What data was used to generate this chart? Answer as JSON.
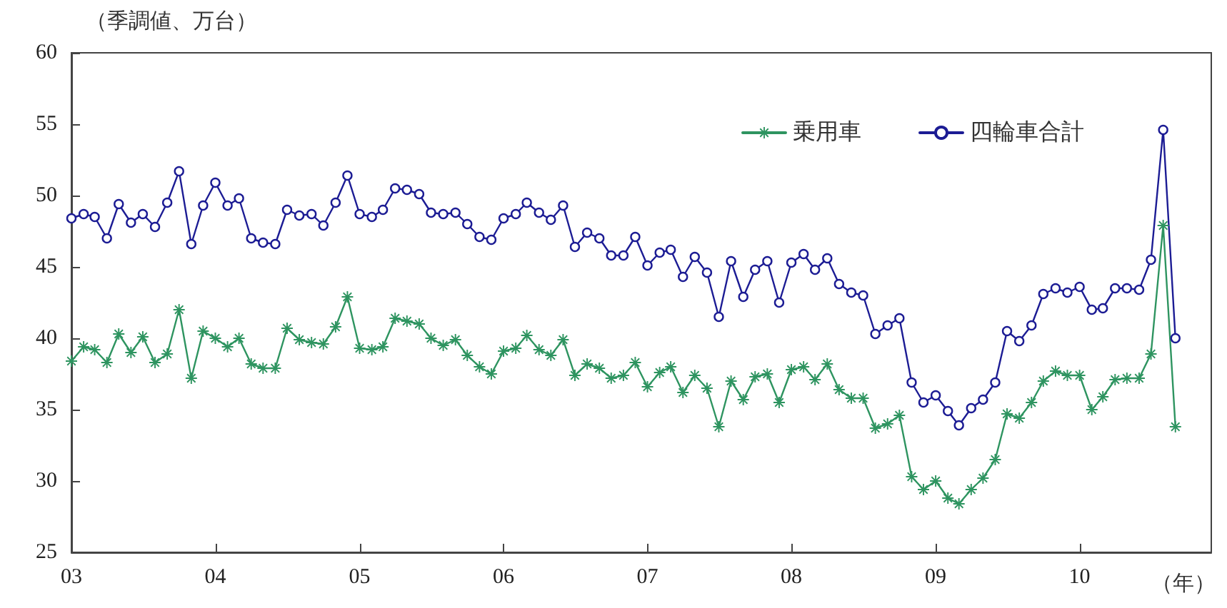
{
  "chart_data": {
    "type": "line",
    "ylabel": "（季調値、万台）",
    "xlabel": "（年）",
    "x": [
      "2003-01",
      "2003-02",
      "2003-03",
      "2003-04",
      "2003-05",
      "2003-06",
      "2003-07",
      "2003-08",
      "2003-09",
      "2003-10",
      "2003-11",
      "2003-12",
      "2004-01",
      "2004-02",
      "2004-03",
      "2004-04",
      "2004-05",
      "2004-06",
      "2004-07",
      "2004-08",
      "2004-09",
      "2004-10",
      "2004-11",
      "2004-12",
      "2005-01",
      "2005-02",
      "2005-03",
      "2005-04",
      "2005-05",
      "2005-06",
      "2005-07",
      "2005-08",
      "2005-09",
      "2005-10",
      "2005-11",
      "2005-12",
      "2006-01",
      "2006-02",
      "2006-03",
      "2006-04",
      "2006-05",
      "2006-06",
      "2006-07",
      "2006-08",
      "2006-09",
      "2006-10",
      "2006-11",
      "2006-12",
      "2007-01",
      "2007-02",
      "2007-03",
      "2007-04",
      "2007-05",
      "2007-06",
      "2007-07",
      "2007-08",
      "2007-09",
      "2007-10",
      "2007-11",
      "2007-12",
      "2008-01",
      "2008-02",
      "2008-03",
      "2008-04",
      "2008-05",
      "2008-06",
      "2008-07",
      "2008-08",
      "2008-09",
      "2008-10",
      "2008-11",
      "2008-12",
      "2009-01",
      "2009-02",
      "2009-03",
      "2009-04",
      "2009-05",
      "2009-06",
      "2009-07",
      "2009-08",
      "2009-09",
      "2009-10",
      "2009-11",
      "2009-12",
      "2010-01",
      "2010-02",
      "2010-03",
      "2010-04",
      "2010-05",
      "2010-06",
      "2010-07",
      "2010-08",
      "2010-09"
    ],
    "series": [
      {
        "name": "乗用車",
        "color": "#2e9460",
        "marker": "star",
        "values": [
          38.4,
          39.4,
          39.2,
          38.3,
          40.3,
          39.0,
          40.1,
          38.3,
          38.9,
          42.0,
          37.2,
          40.5,
          40.0,
          39.4,
          40.0,
          38.2,
          37.9,
          37.9,
          40.7,
          39.9,
          39.7,
          39.6,
          40.8,
          42.9,
          39.3,
          39.2,
          39.4,
          41.4,
          41.2,
          41.0,
          40.0,
          39.5,
          39.9,
          38.8,
          38.0,
          37.5,
          39.1,
          39.3,
          40.2,
          39.2,
          38.8,
          39.9,
          37.4,
          38.2,
          37.9,
          37.2,
          37.4,
          38.3,
          36.6,
          37.6,
          38.0,
          36.2,
          37.4,
          36.5,
          33.8,
          37.0,
          35.7,
          37.3,
          37.5,
          35.5,
          37.8,
          38.0,
          37.1,
          38.2,
          36.4,
          35.8,
          35.8,
          33.7,
          34.0,
          34.6,
          30.3,
          29.4,
          30.0,
          28.8,
          28.4,
          29.4,
          30.2,
          31.5,
          34.7,
          34.4,
          35.5,
          37.0,
          37.7,
          37.4,
          37.4,
          35.0,
          35.9,
          37.1,
          37.2,
          37.2,
          38.9,
          47.9,
          33.8
        ]
      },
      {
        "name": "四輪車合計",
        "color": "#1c1c94",
        "marker": "circle",
        "values": [
          48.4,
          48.7,
          48.5,
          47.0,
          49.4,
          48.1,
          48.7,
          47.8,
          49.5,
          51.7,
          46.6,
          49.3,
          50.9,
          49.3,
          49.8,
          47.0,
          46.7,
          46.6,
          49.0,
          48.6,
          48.7,
          47.9,
          49.5,
          51.4,
          48.7,
          48.5,
          49.0,
          50.5,
          50.4,
          50.1,
          48.8,
          48.7,
          48.8,
          48.0,
          47.1,
          46.9,
          48.4,
          48.7,
          49.5,
          48.8,
          48.3,
          49.3,
          46.4,
          47.4,
          47.0,
          45.8,
          45.8,
          47.1,
          45.1,
          46.0,
          46.2,
          44.3,
          45.7,
          44.6,
          41.5,
          45.4,
          42.9,
          44.8,
          45.4,
          42.5,
          45.3,
          45.9,
          44.8,
          45.6,
          43.8,
          43.2,
          43.0,
          40.3,
          40.9,
          41.4,
          36.9,
          35.5,
          36.0,
          34.9,
          33.9,
          35.1,
          35.7,
          36.9,
          40.5,
          39.8,
          40.9,
          43.1,
          43.5,
          43.2,
          43.6,
          42.0,
          42.1,
          43.5,
          43.5,
          43.4,
          45.5,
          54.6,
          40.0
        ]
      }
    ],
    "xlim": [
      "2003-01",
      "2010-12"
    ],
    "xticks": [
      {
        "value": "2003-01",
        "label": "03"
      },
      {
        "value": "2004-01",
        "label": "04"
      },
      {
        "value": "2005-01",
        "label": "05"
      },
      {
        "value": "2006-01",
        "label": "06"
      },
      {
        "value": "2007-01",
        "label": "07"
      },
      {
        "value": "2008-01",
        "label": "08"
      },
      {
        "value": "2009-01",
        "label": "09"
      },
      {
        "value": "2010-01",
        "label": "10"
      }
    ],
    "ylim": [
      25,
      60
    ],
    "yticks": [
      25,
      30,
      35,
      40,
      45,
      50,
      55,
      60
    ],
    "grid": false,
    "legend": "top right",
    "line_style": "solid"
  }
}
